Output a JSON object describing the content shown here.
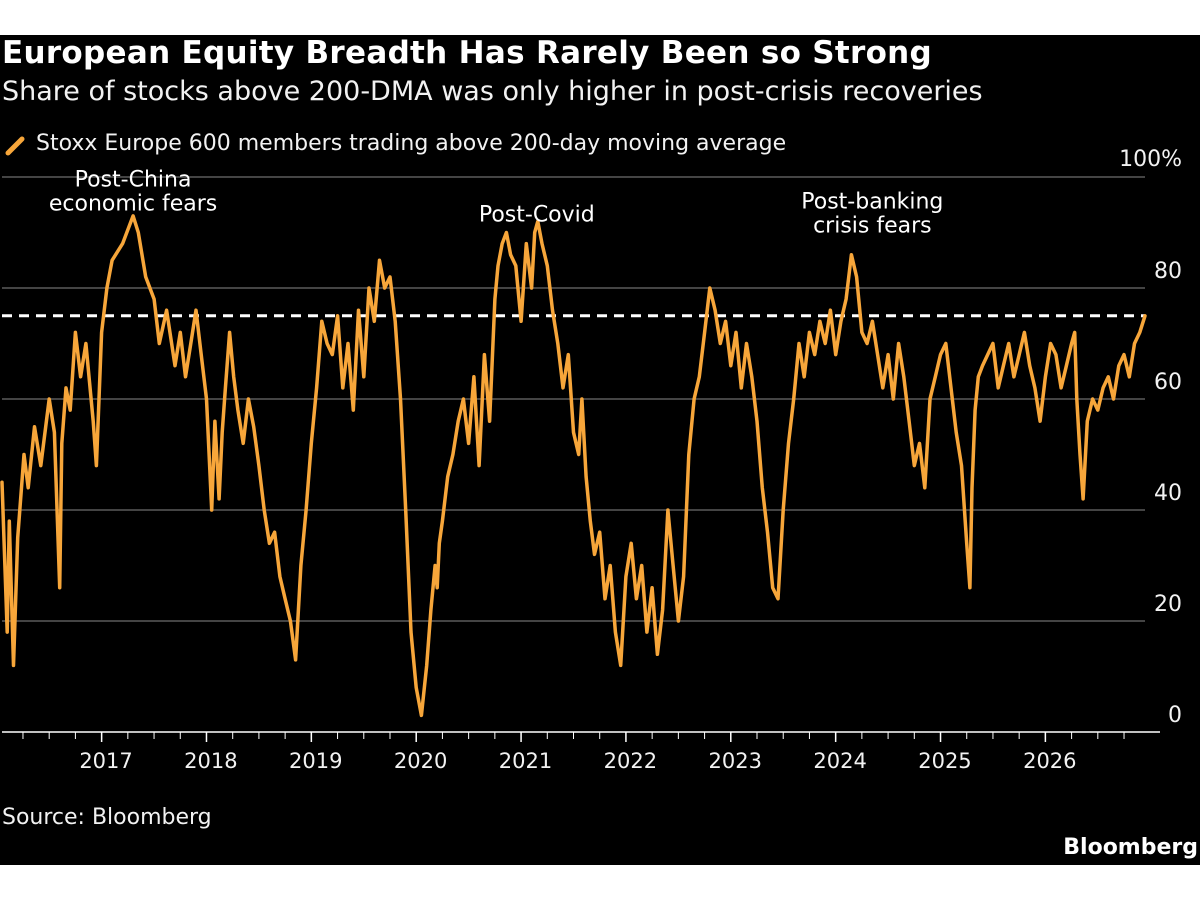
{
  "title": "European Equity Breadth Has Rarely Been so Strong",
  "subtitle": "Share of stocks above 200-DMA was only higher in post-crisis recoveries",
  "source": "Source: Bloomberg",
  "brand": "Bloomberg",
  "colors": {
    "background": "#000000",
    "series": "#F7A63A",
    "text": "#FFFFFF",
    "grid": "#5A5A5A",
    "reference": "#FFFFFF"
  },
  "icons": {
    "legend_swatch": "diagonal-line-swatch-icon"
  },
  "chart_data": {
    "type": "line",
    "title": "European Equity Breadth Has Rarely Been so Strong",
    "subtitle": "Share of stocks above 200-DMA was only higher in post-crisis recoveries",
    "xlabel": "",
    "ylabel": "",
    "x_ticks": [
      "2017",
      "2018",
      "2019",
      "2020",
      "2021",
      "2022",
      "2023",
      "2024",
      "2025",
      "2026"
    ],
    "y_ticks": [
      0,
      20,
      40,
      60,
      80,
      100
    ],
    "y_tick_labels": [
      "0",
      "20",
      "40",
      "60",
      "80",
      "100%"
    ],
    "ylim": [
      0,
      100
    ],
    "xlim": [
      2016.05,
      2026.95
    ],
    "grid": "horizontal",
    "legend_position": "top-left",
    "reference_line": {
      "value": 75,
      "style": "dashed"
    },
    "annotations": [
      {
        "lines": [
          "Post-China",
          "economic fears"
        ],
        "x": 2017.3,
        "y": 94
      },
      {
        "lines": [
          "Post-Covid"
        ],
        "x": 2021.15,
        "y": 92
      },
      {
        "lines": [
          "Post-banking",
          "crisis fears"
        ],
        "x": 2024.35,
        "y": 90
      }
    ],
    "series": [
      {
        "name": "Stoxx Europe 600 members trading above 200-day moving average",
        "x": [
          2016.05,
          2016.1,
          2016.12,
          2016.16,
          2016.2,
          2016.26,
          2016.3,
          2016.36,
          2016.42,
          2016.5,
          2016.55,
          2016.6,
          2016.62,
          2016.66,
          2016.7,
          2016.75,
          2016.8,
          2016.85,
          2016.9,
          2016.92,
          2016.95,
          2017.0,
          2017.05,
          2017.1,
          2017.2,
          2017.3,
          2017.35,
          2017.42,
          2017.5,
          2017.55,
          2017.62,
          2017.7,
          2017.75,
          2017.8,
          2017.85,
          2017.9,
          2017.95,
          2018.0,
          2018.05,
          2018.08,
          2018.12,
          2018.15,
          2018.18,
          2018.22,
          2018.26,
          2018.3,
          2018.35,
          2018.4,
          2018.45,
          2018.5,
          2018.55,
          2018.6,
          2018.65,
          2018.7,
          2018.75,
          2018.8,
          2018.85,
          2018.9,
          2018.95,
          2019.0,
          2019.05,
          2019.1,
          2019.15,
          2019.2,
          2019.25,
          2019.3,
          2019.35,
          2019.4,
          2019.45,
          2019.5,
          2019.55,
          2019.6,
          2019.65,
          2019.7,
          2019.75,
          2019.8,
          2019.85,
          2019.9,
          2019.95,
          2020.0,
          2020.05,
          2020.1,
          2020.14,
          2020.18,
          2020.2,
          2020.22,
          2020.25,
          2020.3,
          2020.35,
          2020.4,
          2020.45,
          2020.5,
          2020.55,
          2020.6,
          2020.65,
          2020.7,
          2020.75,
          2020.78,
          2020.82,
          2020.86,
          2020.9,
          2020.95,
          2021.0,
          2021.05,
          2021.1,
          2021.13,
          2021.16,
          2021.2,
          2021.25,
          2021.3,
          2021.35,
          2021.4,
          2021.45,
          2021.5,
          2021.55,
          2021.58,
          2021.62,
          2021.66,
          2021.7,
          2021.75,
          2021.8,
          2021.85,
          2021.9,
          2021.95,
          2022.0,
          2022.05,
          2022.1,
          2022.15,
          2022.2,
          2022.25,
          2022.3,
          2022.35,
          2022.4,
          2022.45,
          2022.5,
          2022.55,
          2022.6,
          2022.65,
          2022.7,
          2022.75,
          2022.8,
          2022.85,
          2022.9,
          2022.95,
          2023.0,
          2023.05,
          2023.1,
          2023.15,
          2023.2,
          2023.25,
          2023.3,
          2023.35,
          2023.4,
          2023.45,
          2023.5,
          2023.55,
          2023.6,
          2023.65,
          2023.7,
          2023.75,
          2023.8,
          2023.85,
          2023.9,
          2023.95,
          2024.0,
          2024.05,
          2024.1,
          2024.15,
          2024.2,
          2024.25,
          2024.3,
          2024.35,
          2024.4,
          2024.45,
          2024.5,
          2024.55,
          2024.6,
          2024.65,
          2024.7,
          2024.75,
          2024.8,
          2024.85,
          2024.9,
          2024.95,
          2025.0,
          2025.05,
          2025.1,
          2025.15,
          2025.2,
          2025.25,
          2025.28,
          2025.3,
          2025.33,
          2025.36,
          2025.4,
          2025.45,
          2025.5,
          2025.55,
          2025.6,
          2025.65,
          2025.7,
          2025.75,
          2025.8,
          2025.85,
          2025.9,
          2025.95,
          2026.0,
          2026.05,
          2026.1,
          2026.15,
          2026.2,
          2026.25,
          2026.28,
          2026.3,
          2026.33,
          2026.36,
          2026.4,
          2026.45,
          2026.5,
          2026.55,
          2026.6,
          2026.65,
          2026.7,
          2026.75,
          2026.8,
          2026.85,
          2026.9,
          2026.95
        ],
        "y": [
          45,
          18,
          38,
          12,
          35,
          50,
          44,
          55,
          48,
          60,
          54,
          26,
          52,
          62,
          58,
          72,
          64,
          70,
          60,
          56,
          48,
          72,
          80,
          85,
          88,
          93,
          90,
          82,
          78,
          70,
          76,
          66,
          72,
          64,
          70,
          76,
          68,
          60,
          40,
          56,
          42,
          54,
          62,
          72,
          64,
          58,
          52,
          60,
          55,
          48,
          40,
          34,
          36,
          28,
          24,
          20,
          13,
          30,
          40,
          52,
          62,
          74,
          70,
          68,
          75,
          62,
          70,
          58,
          76,
          64,
          80,
          74,
          85,
          80,
          82,
          74,
          60,
          40,
          18,
          8,
          3,
          12,
          22,
          30,
          26,
          34,
          38,
          46,
          50,
          56,
          60,
          52,
          64,
          48,
          68,
          56,
          78,
          84,
          88,
          90,
          86,
          84,
          74,
          88,
          80,
          90,
          92,
          88,
          84,
          76,
          70,
          62,
          68,
          54,
          50,
          60,
          46,
          38,
          32,
          36,
          24,
          30,
          18,
          12,
          28,
          34,
          24,
          30,
          18,
          26,
          14,
          22,
          40,
          30,
          20,
          28,
          50,
          60,
          64,
          72,
          80,
          76,
          70,
          74,
          66,
          72,
          62,
          70,
          64,
          56,
          44,
          36,
          26,
          24,
          40,
          52,
          60,
          70,
          64,
          72,
          68,
          74,
          70,
          76,
          68,
          74,
          78,
          86,
          82,
          72,
          70,
          74,
          68,
          62,
          68,
          60,
          70,
          64,
          56,
          48,
          52,
          44,
          60,
          64,
          68,
          70,
          62,
          54,
          48,
          34,
          26,
          44,
          58,
          64,
          66,
          68,
          70,
          62,
          66,
          70,
          64,
          68,
          72,
          66,
          62,
          56,
          64,
          70,
          68,
          62,
          66,
          70,
          72,
          60,
          50,
          42,
          56,
          60,
          58,
          62,
          64,
          60,
          66,
          68,
          64,
          70,
          72,
          75
        ]
      }
    ]
  }
}
